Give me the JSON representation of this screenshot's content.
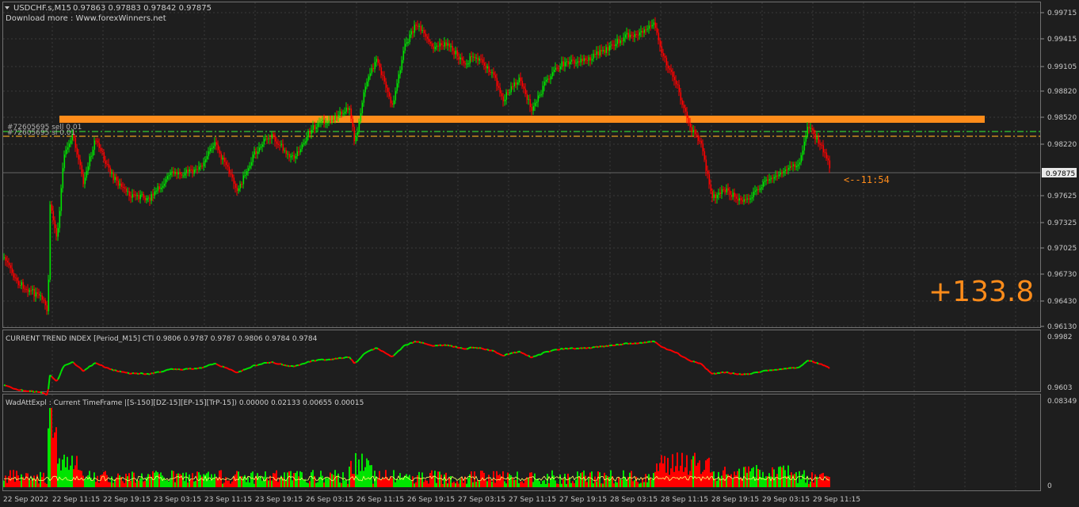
{
  "main": {
    "symbol_label": "USDCHF.s,M15",
    "ohlc_label": "0.97863 0.97883 0.97842 0.97875",
    "download_text": "Download more : Www.forexWinners.net",
    "price_ticks": [
      "0.99715",
      "0.99415",
      "0.99105",
      "0.98820",
      "0.98520",
      "0.98220",
      "0.97625",
      "0.97325",
      "0.97025",
      "0.96730",
      "0.96430",
      "0.96130"
    ],
    "current_price": "0.97875",
    "countdown": "<--11:54",
    "profit": "+133.8",
    "order_labels": [
      "#72605695 sell 0.01",
      "#72605695 sl 0.01"
    ]
  },
  "cti": {
    "title": "CURRENT TREND INDEX [Period_M15] CTI 0.9806 0.9787 0.9787 0.9806 0.9784 0.9784",
    "ticks": [
      "0.9982",
      "0.9603"
    ]
  },
  "wad": {
    "title": "WadAttExpl : Current TimeFrame |[S-150][DZ-15][EP-15][TrP-15]) 0.00000 0.02133 0.00655 0.00015",
    "ticks": [
      "0.08349",
      "0"
    ]
  },
  "time_axis": [
    "22 Sep 2022",
    "22 Sep 11:15",
    "22 Sep 19:15",
    "23 Sep 03:15",
    "23 Sep 11:15",
    "23 Sep 19:15",
    "26 Sep 03:15",
    "26 Sep 11:15",
    "26 Sep 19:15",
    "27 Sep 03:15",
    "27 Sep 11:15",
    "27 Sep 19:15",
    "28 Sep 03:15",
    "28 Sep 11:15",
    "28 Sep 19:15",
    "29 Sep 03:15",
    "29 Sep 11:15"
  ],
  "colors": {
    "background": "#1e1e1e",
    "bull": "#00e400",
    "bear": "#ff0000",
    "resistance_zone": "#ff8c1a",
    "line_green": "#32cd32",
    "line_orange": "#e8a020",
    "profit_text": "#ff8c1a",
    "grid": "#3a3a3a"
  }
}
